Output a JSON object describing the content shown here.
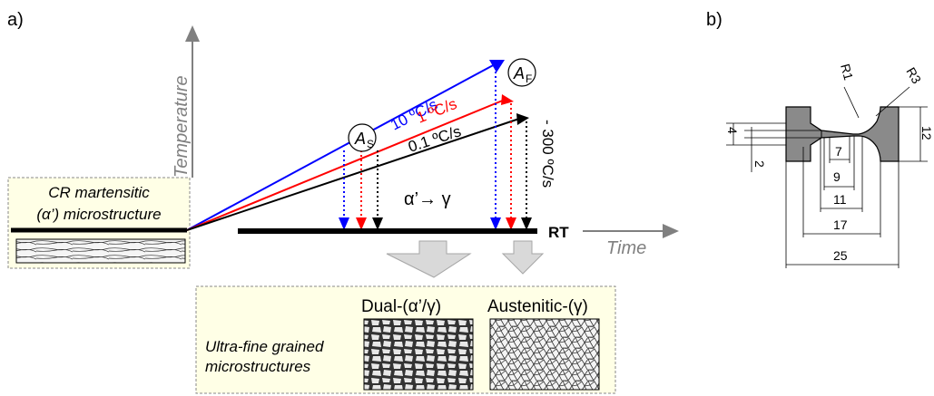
{
  "panel_a": {
    "label": "a)",
    "temperature_axis": "Temperature",
    "time_axis": "Time",
    "rt_label": "RT",
    "start_box": {
      "line1": "CR martensitic",
      "line2": "(α’) microstructure"
    },
    "rates": [
      {
        "label": "10 ºC/s",
        "color": "#0000ff"
      },
      {
        "label": "1 ºC/s",
        "color": "#ff0000"
      },
      {
        "label": "0.1 ºC/s",
        "color": "#000000"
      }
    ],
    "cooling_rate": "- 300 ºC/s",
    "as_main": "A",
    "as_sub": "S",
    "af_main": "A",
    "af_sub": "F",
    "transformation": "α’→ γ",
    "result_box": {
      "line1": "Ultra-fine grained",
      "line2": "microstructures",
      "dual": "Dual-(α’/γ)",
      "austenitic": "Austenitic-(γ)"
    }
  },
  "panel_b": {
    "label": "b)",
    "dims": {
      "r1": "R1",
      "r3": "R3",
      "d4": "4",
      "d2": "2",
      "d12": "12",
      "d7": "7",
      "d9": "9",
      "d11": "11",
      "d17": "17",
      "d25": "25"
    }
  }
}
